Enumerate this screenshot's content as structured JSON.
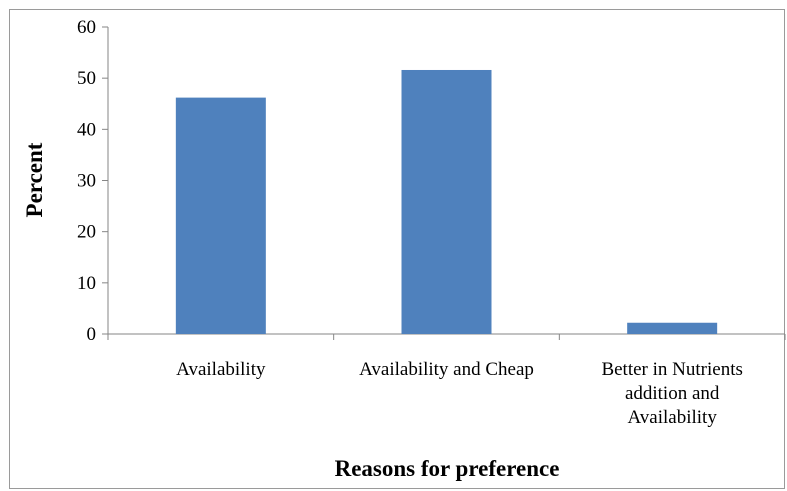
{
  "chart_data": {
    "type": "bar",
    "categories": [
      "Availability",
      "Availability and Cheap",
      "Better in Nutrients addition and Availability"
    ],
    "category_lines": [
      [
        "Availability"
      ],
      [
        "Availability and Cheap"
      ],
      [
        "Better in Nutrients",
        "addition and",
        "Availability"
      ]
    ],
    "values": [
      46.2,
      51.6,
      2.2
    ],
    "title": "",
    "xlabel": "Reasons for preference",
    "ylabel": "Percent",
    "ylim": [
      0,
      60
    ],
    "yticks": [
      "0",
      "10",
      "20",
      "30",
      "40",
      "50",
      "60"
    ],
    "bar_color": "#4F81BD",
    "grid": false,
    "legend": "none"
  }
}
